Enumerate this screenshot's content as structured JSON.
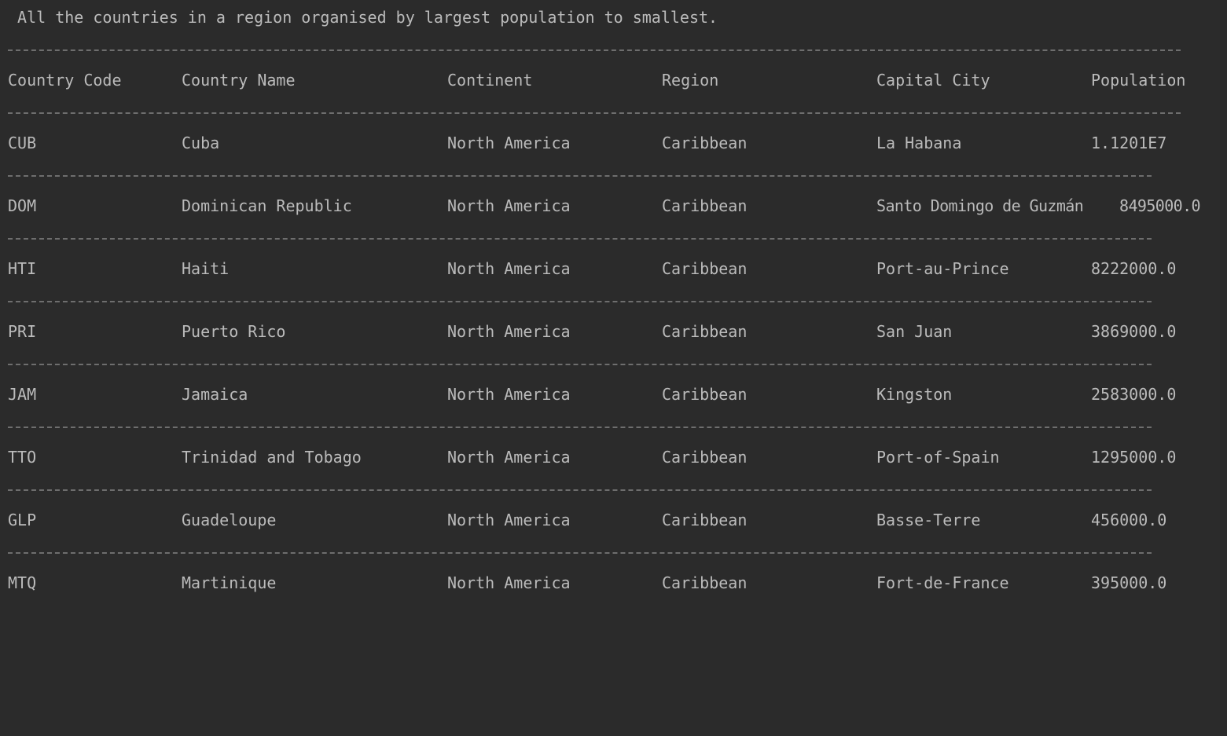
{
  "console": {
    "title": " All the countries in a region organised by largest population to smallest.",
    "separator_long": "---------------------------------------------------------------------------------------------------------------------",
    "separator_short": "------------------------------------------------------------------------------------------------------------------",
    "columns": [
      "Country Code",
      "Country Name",
      "Continent",
      "Region",
      "Capital City",
      "Population"
    ],
    "rows": [
      [
        "CUB",
        "Cuba",
        "North America",
        "Caribbean",
        "La Habana",
        "1.1201E7"
      ],
      [
        "DOM",
        "Dominican Republic",
        "North America",
        "Caribbean",
        "Santo Domingo de Guzmán",
        "8495000.0"
      ],
      [
        "HTI",
        "Haiti",
        "North America",
        "Caribbean",
        "Port-au-Prince",
        "8222000.0"
      ],
      [
        "PRI",
        "Puerto Rico",
        "North America",
        "Caribbean",
        "San Juan",
        "3869000.0"
      ],
      [
        "JAM",
        "Jamaica",
        "North America",
        "Caribbean",
        "Kingston",
        "2583000.0"
      ],
      [
        "TTO",
        "Trinidad and Tobago",
        "North America",
        "Caribbean",
        "Port-of-Spain",
        "1295000.0"
      ],
      [
        "GLP",
        "Guadeloupe",
        "North America",
        "Caribbean",
        "Basse-Terre",
        "456000.0"
      ],
      [
        "MTQ",
        "Martinique",
        "North America",
        "Caribbean",
        "Fort-de-France",
        "395000.0"
      ]
    ]
  }
}
